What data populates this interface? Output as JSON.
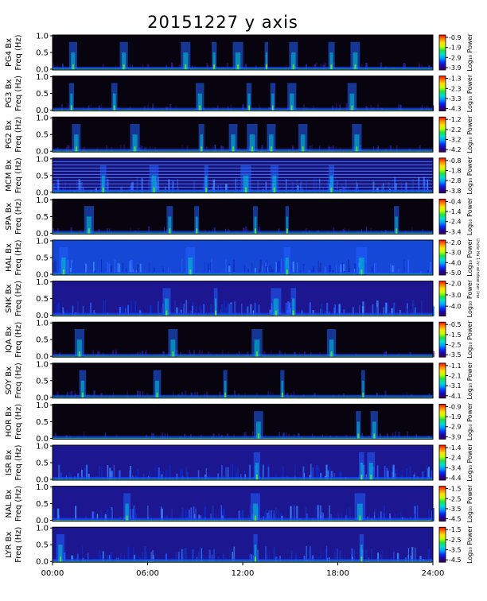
{
  "title": "20151227  y axis",
  "side_note": "Uncle Ha 1-hr window per line",
  "chart_data": {
    "type": "heatmap",
    "x_ticks": [
      "00:00",
      "06:00",
      "12:00",
      "18:00",
      "24:00"
    ],
    "x_range_hours": [
      0,
      24
    ],
    "y_ticks": [
      "0.0",
      "0.5",
      "1.0"
    ],
    "y_range_hz": [
      0,
      1.0
    ],
    "ylabel": "Freq (Hz)",
    "colorbar_label": "Log₁₀ Power",
    "colorscale": [
      "#000000",
      "#3a0060",
      "#2000a0",
      "#0030ff",
      "#00a0ff",
      "#00e0d0",
      "#20e040",
      "#c0ff00",
      "#ffe000",
      "#ff8000",
      "#ff0000"
    ],
    "panels": [
      {
        "station": "PG4 Bx",
        "cbar_ticks": [
          "-0.9",
          "-1.9",
          "-2.9",
          "-3.9"
        ],
        "bg": "dark",
        "bursts": [
          1.3,
          4.5,
          8.4,
          10.2,
          11.7,
          13.5,
          15.2,
          17.6,
          19.1
        ]
      },
      {
        "station": "PG3 Bx",
        "cbar_ticks": [
          "-1.3",
          "-2.3",
          "-3.3",
          "-4.3"
        ],
        "bg": "dark",
        "bursts": [
          1.2,
          3.9,
          9.3,
          12.4,
          13.9,
          15.1,
          18.9
        ]
      },
      {
        "station": "PG2 Bx",
        "cbar_ticks": [
          "-1.2",
          "-2.2",
          "-3.2",
          "-4.2"
        ],
        "bg": "dark",
        "bursts": [
          1.5,
          5.2,
          9.4,
          11.4,
          12.6,
          13.8,
          15.8,
          19.2
        ]
      },
      {
        "station": "MCM Bx",
        "cbar_ticks": [
          "-0.8",
          "-1.8",
          "-2.8",
          "-3.8"
        ],
        "bg": "lines",
        "bursts": [
          3.2,
          6.4,
          9.7,
          12.2,
          14.0,
          17.6
        ]
      },
      {
        "station": "SPA Bx",
        "cbar_ticks": [
          "-0.4",
          "-1.4",
          "-2.4",
          "-3.4"
        ],
        "bg": "dark",
        "bursts": [
          2.3,
          7.4,
          9.1,
          12.8,
          14.8,
          21.7
        ]
      },
      {
        "station": "HAL Bx",
        "cbar_ticks": [
          "-2.0",
          "-3.0",
          "-4.0",
          "-5.0"
        ],
        "bg": "bright",
        "bursts": [
          0.7,
          8.7,
          14.8,
          19.5
        ]
      },
      {
        "station": "SNK Bx",
        "cbar_ticks": [
          "-2.0",
          "-3.0",
          "-4.0"
        ],
        "bg": "medium",
        "bursts": [
          7.2,
          10.3,
          14.1,
          15.2
        ]
      },
      {
        "station": "IQA Bx",
        "cbar_ticks": [
          "-0.5",
          "-1.5",
          "-2.5",
          "-3.5"
        ],
        "bg": "dark",
        "bursts": [
          1.7,
          7.6,
          12.9,
          17.6
        ]
      },
      {
        "station": "SOY Bx",
        "cbar_ticks": [
          "-1.1",
          "-2.1",
          "-3.1",
          "-4.1"
        ],
        "bg": "dark",
        "bursts": [
          1.9,
          6.6,
          10.9,
          14.5,
          19.6
        ]
      },
      {
        "station": "HOR Bx",
        "cbar_ticks": [
          "-0.9",
          "-1.9",
          "-2.9",
          "-3.9"
        ],
        "bg": "dark",
        "bursts": [
          13.0,
          19.3,
          20.3
        ]
      },
      {
        "station": "ISR Bx",
        "cbar_ticks": [
          "-1.4",
          "-2.4",
          "-3.4",
          "-4.4"
        ],
        "bg": "medium",
        "bursts": [
          12.9,
          19.5,
          20.1
        ]
      },
      {
        "station": "NAL Bx",
        "cbar_ticks": [
          "-1.5",
          "-2.5",
          "-3.5",
          "-4.5"
        ],
        "bg": "medium",
        "bursts": [
          4.7,
          12.8,
          19.4
        ]
      },
      {
        "station": "LYR Bx",
        "cbar_ticks": [
          "-1.5",
          "-2.5",
          "-3.5",
          "-4.5"
        ],
        "bg": "medium",
        "bursts": [
          0.5,
          12.8,
          19.5
        ]
      }
    ]
  }
}
